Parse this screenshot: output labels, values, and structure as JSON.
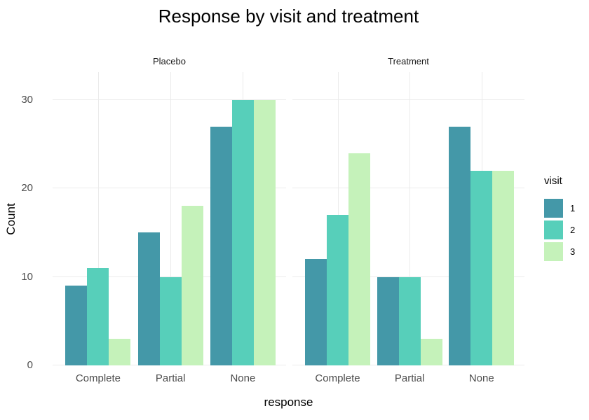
{
  "title": "Response by visit and treatment",
  "chart_data": {
    "type": "bar",
    "title": "Response by visit and treatment",
    "xlabel": "response",
    "ylabel": "Count",
    "ylim": [
      0,
      30
    ],
    "yticks": [
      0,
      10,
      20,
      30
    ],
    "grid": "major-only",
    "legend_position": "right",
    "legend": {
      "title": "visit",
      "entries": [
        "1",
        "2",
        "3"
      ]
    },
    "series_colors": [
      "#4498a8",
      "#57cfba",
      "#c5f2ba"
    ],
    "categories": [
      "Complete",
      "Partial",
      "None"
    ],
    "facets": [
      {
        "label": "Placebo",
        "series": [
          {
            "name": "1",
            "values": [
              9,
              15,
              27
            ]
          },
          {
            "name": "2",
            "values": [
              11,
              10,
              30
            ]
          },
          {
            "name": "3",
            "values": [
              3,
              18,
              30
            ]
          }
        ]
      },
      {
        "label": "Treatment",
        "series": [
          {
            "name": "1",
            "values": [
              12,
              10,
              27
            ]
          },
          {
            "name": "2",
            "values": [
              17,
              10,
              22
            ]
          },
          {
            "name": "3",
            "values": [
              24,
              3,
              22
            ]
          }
        ]
      }
    ],
    "colors": {
      "gridline": "#ebebeb",
      "axis_text": "#4d4d4d",
      "strip_text": "#1a1a1a",
      "title_text": "#000000",
      "background": "#ffffff"
    }
  }
}
